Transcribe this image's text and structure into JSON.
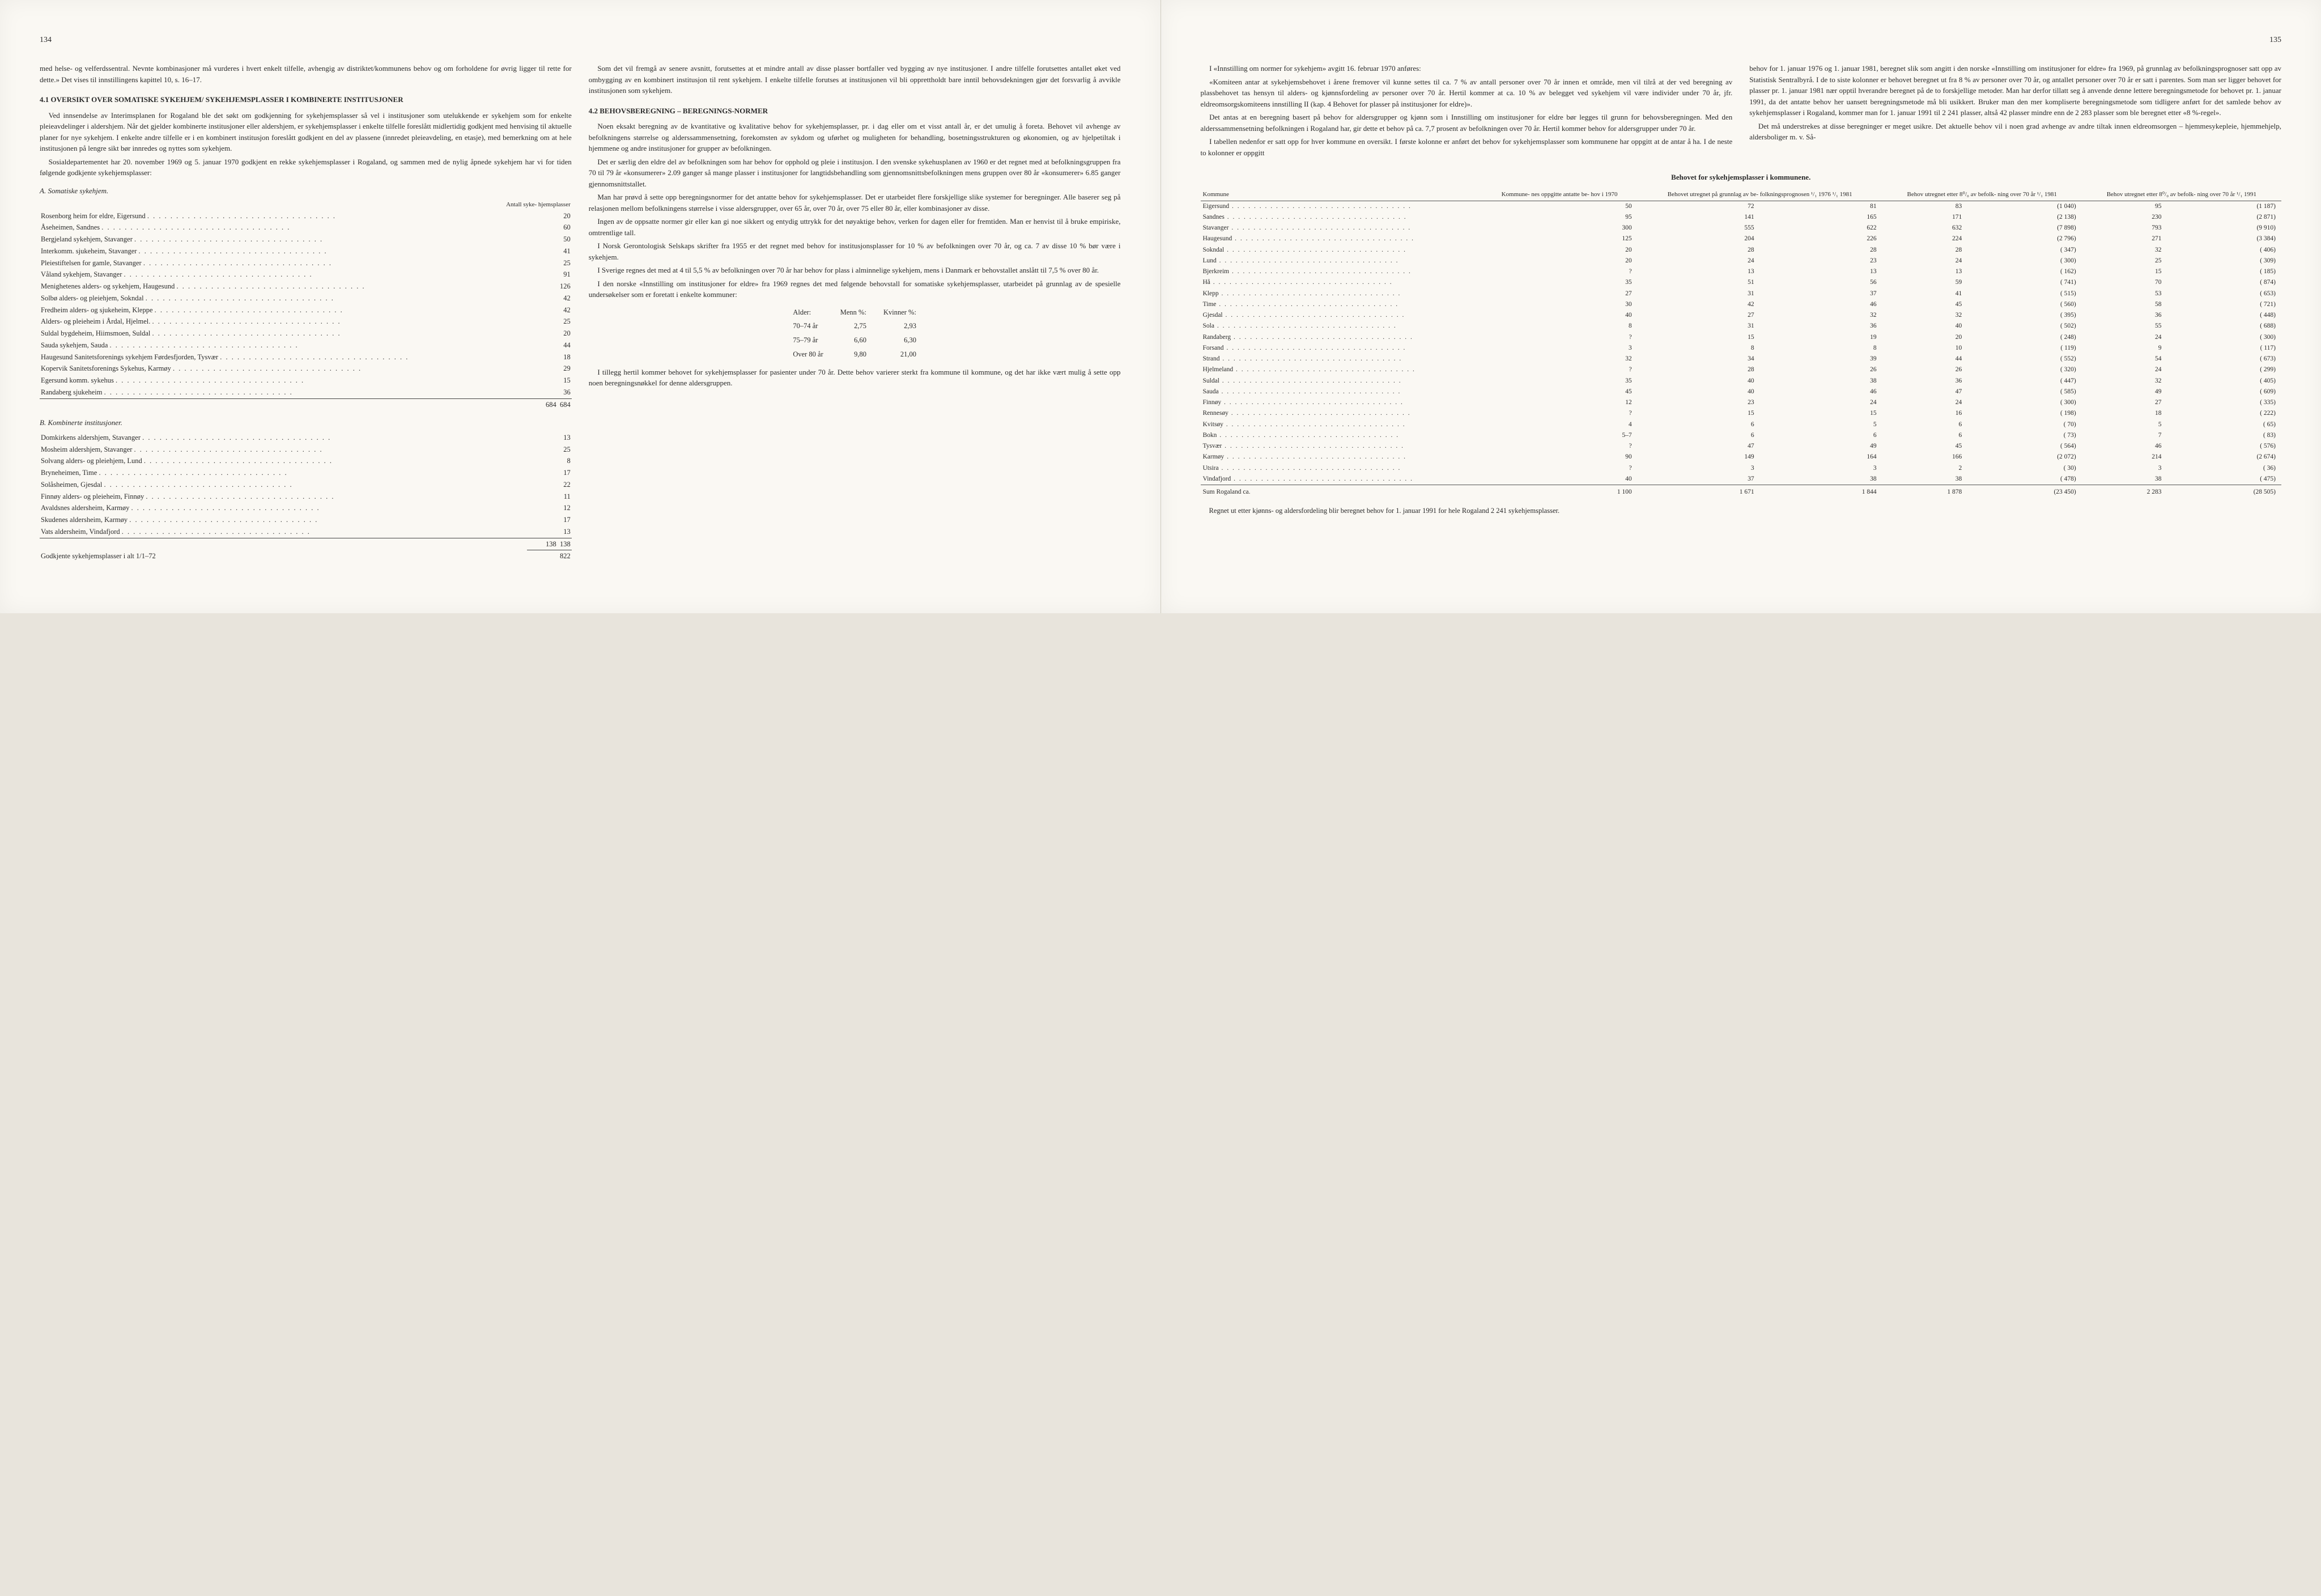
{
  "leftPage": {
    "pageNum": "134",
    "intro": "med helse- og velferdssentral. Nevnte kombinasjoner må vurderes i hvert enkelt tilfelle, avhengig av distriktet/kommunens behov og om forholdene for øvrig ligger til rette for dette.» Det vises til innstillingens kapittel 10, s. 16–17.",
    "h41": "4.1 OVERSIKT OVER SOMATISKE SYKEHJEM/ SYKEHJEMSPLASSER I KOMBINERTE INSTITUSJONER",
    "p41a": "Ved innsendelse av Interimsplanen for Rogaland ble det søkt om godkjenning for sykehjemsplasser så vel i institusjoner som utelukkende er sykehjem som for enkelte pleieavdelinger i aldershjem. Når det gjelder kombinerte institusjoner eller aldershjem, er sykehjemsplasser i enkelte tilfelle foreslått midlertidig godkjent med henvising til aktuelle planer for nye sykehjem. I enkelte andre tilfelle er i en kombinert institusjon foreslått godkjent en del av plassene (innredet pleieavdeling, en etasje), med bemerkning om at hele institusjonen på lengre sikt bør innredes og nyttes som sykehjem.",
    "p41b": "Sosialdepartementet har 20. november 1969 og 5. januar 1970 godkjent en rekke sykehjemsplasser i Rogaland, og sammen med de nylig åpnede sykehjem har vi for tiden følgende godkjente sykehjemsplasser:",
    "listAHead": "A. Somatiske sykehjem.",
    "listAColHead": "Antall syke-\nhjemsplasser",
    "listA": [
      [
        "Rosenborg heim for eldre, Eigersund",
        "20"
      ],
      [
        "Åseheimen, Sandnes",
        "60"
      ],
      [
        "Bergjeland sykehjem, Stavanger",
        "50"
      ],
      [
        "Interkomm. sjukeheim, Stavanger",
        "41"
      ],
      [
        "Pleiestiftelsen for gamle, Stavanger",
        "25"
      ],
      [
        "Våland sykehjem, Stavanger",
        "91"
      ],
      [
        "Menighetenes alders- og sykehjem, Haugesund",
        "126"
      ],
      [
        "Solbø alders- og pleiehjem, Sokndal",
        "42"
      ],
      [
        "Fredheim alders- og sjukeheim, Kleppe",
        "42"
      ],
      [
        "Alders- og pleieheim i Årdal, Hjelmel.",
        "25"
      ],
      [
        "Suldal bygdeheim, Hiimsmoen, Suldal",
        "20"
      ],
      [
        "Sauda sykehjem, Sauda",
        "44"
      ],
      [
        "Haugesund Sanitetsforenings sykehjem Førdesfjorden, Tysvær",
        "18"
      ],
      [
        "Kopervik Sanitetsforenings Sykehus, Karmøy",
        "29"
      ],
      [
        "Egersund komm. sykehus",
        "15"
      ],
      [
        "Randaberg sjukeheim",
        "36"
      ]
    ],
    "listATotal": [
      "684",
      "684"
    ],
    "listBHead": "B. Kombinerte institusjoner.",
    "listB": [
      [
        "Domkirkens aldershjem, Stavanger",
        "13"
      ],
      [
        "Mosheim aldershjem, Stavanger",
        "25"
      ],
      [
        "Solvang alders- og pleiehjem, Lund",
        "8"
      ],
      [
        "Bryneheimen, Time",
        "17"
      ],
      [
        "Solåsheimen, Gjesdal",
        "22"
      ],
      [
        "Finnøy alders- og pleieheim, Finnøy",
        "11"
      ],
      [
        "Avaldsnes aldersheim, Karmøy",
        "12"
      ],
      [
        "Skudenes aldersheim, Karmøy",
        "17"
      ],
      [
        "Vats aldersheim, Vindafjord",
        "13"
      ]
    ],
    "listBTotal": [
      "138",
      "138"
    ],
    "grandTotal": [
      "Godkjente sykehjemsplasser i alt 1/1–72",
      "822"
    ],
    "col2p1": "Som det vil fremgå av senere avsnitt, forutsettes at et mindre antall av disse plasser bortfaller ved bygging av nye institusjoner. I andre tilfelle forutsettes antallet øket ved ombygging av en kombinert institusjon til rent sykehjem. I enkelte tilfelle forutses at institusjonen vil bli opprettholdt bare inntil behovsdekningen gjør det forsvarlig å avvikle institusjonen som sykehjem.",
    "h42": "4.2 BEHOVSBEREGNING – BEREGNINGS-NORMER",
    "p42a": "Noen eksakt beregning av de kvantitative og kvalitative behov for sykehjemsplasser, pr. i dag eller om et visst antall år, er det umulig å foreta. Behovet vil avhenge av befolkningens størrelse og alderssammensetning, forekomsten av sykdom og uførhet og muligheten for behandling, bosetningsstrukturen og økonomien, og av hjelpetiltak i hjemmene og andre institusjoner for grupper av befolkningen.",
    "p42b": "Det er særlig den eldre del av befolkningen som har behov for opphold og pleie i institusjon. I den svenske sykehusplanen av 1960 er det regnet med at befolkningsgruppen fra 70 til 79 år «konsumerer» 2.09 ganger så mange plasser i institusjoner for langtidsbehandling som gjennomsnittsbefolkningen mens gruppen over 80 år «konsumerer» 6.85 ganger gjennomsnittstallet.",
    "p42c": "Man har prøvd å sette opp beregningsnormer for det antatte behov for sykehjemsplasser. Det er utarbeidet flere forskjellige slike systemer for beregninger. Alle baserer seg på relasjonen mellom befolkningens størrelse i visse aldersgrupper, over 65 år, over 70 år, over 75 eller 80 år, eller kombinasjoner av disse.",
    "p42d": "Ingen av de oppsatte normer gir eller kan gi noe sikkert og entydig uttrykk for det nøyaktige behov, verken for dagen eller for fremtiden. Man er henvist til å bruke empiriske, omtrentlige tall.",
    "p42e": "I Norsk Gerontologisk Selskaps skrifter fra 1955 er det regnet med behov for institusjonsplasser for 10 % av befolkningen over 70 år, og ca. 7 av disse 10 % bør være i sykehjem.",
    "p42f": "I Sverige regnes det med at 4 til 5,5 % av befolkningen over 70 år har behov for plass i alminnelige sykehjem, mens i Danmark er behovstallet anslått til 7,5 % over 80 år.",
    "p42g": "I den norske «Innstilling om institusjoner for eldre» fra 1969 regnes det med følgende behovstall for somatiske sykehjemsplasser, utarbeidet på grunnlag av de spesielle undersøkelser som er foretatt i enkelte kommuner:",
    "ageTable": {
      "headers": [
        "Alder:",
        "Menn %:",
        "Kvinner %:"
      ],
      "rows": [
        [
          "70–74 år",
          "2,75",
          "2,93"
        ],
        [
          "75–79 år",
          "6,60",
          "6,30"
        ],
        [
          "Over 80 år",
          "9,80",
          "21,00"
        ]
      ]
    },
    "p42h": "I tillegg hertil kommer behovet for sykehjemsplasser for pasienter under 70 år. Dette behov varierer sterkt fra kommune til kommune, og det har ikke vært mulig å sette opp noen beregningsnøkkel for denne aldersgruppen."
  },
  "rightPage": {
    "pageNum": "135",
    "p1": "I «Innstilling om normer for sykehjem» avgitt 16. februar 1970 anføres:",
    "p2": "«Komiteen antar at sykehjemsbehovet i årene fremover vil kunne settes til ca. 7 % av antall personer over 70 år innen et område, men vil tilrå at der ved beregning av plassbehovet tas hensyn til alders- og kjønnsfordeling av personer over 70 år. Hertil kommer at ca. 10 % av belegget ved sykehjem vil være individer under 70 år, jfr. eldreomsorgskomiteens innstilling II (kap. 4 Behovet for plasser på institusjoner for eldre)».",
    "p3": "Det antas at en beregning basert på behov for aldersgrupper og kjønn som i Innstilling om institusjoner for eldre bør legges til grunn for behovsberegningen. Med den alderssammensetning befolkningen i Rogaland har, gir dette et behov på ca. 7,7 prosent av befolkningen over 70 år. Hertil kommer behov for aldersgrupper under 70 år.",
    "p4": "I tabellen nedenfor er satt opp for hver kommune en oversikt. I første kolonne er anført det behov for sykehjemsplasser som kommunene har oppgitt at de antar å ha. I de neste to kolonner er oppgitt",
    "p5": "behov for 1. januar 1976 og 1. januar 1981, beregnet slik som angitt i den norske «Innstilling om institusjoner for eldre» fra 1969, på grunnlag av befolkningsprognoser satt opp av Statistisk Sentralbyrå. I de to siste kolonner er behovet beregnet ut fra 8 % av personer over 70 år, og antallet personer over 70 år er satt i parentes. Som man ser ligger behovet for plasser pr. 1. januar 1981 nær opptil hverandre beregnet på de to forskjellige metoder. Man har derfor tillatt seg å anvende denne lettere beregningsmetode for behovet pr. 1. januar 1991, da det antatte behov her uansett beregningsmetode må bli usikkert. Bruker man den mer kompliserte beregningsmetode som tidligere anført for det samlede behov av sykehjemsplasser i Rogaland, kommer man for 1. januar 1991 til 2 241 plasser, altså 42 plasser mindre enn de 2 283 plasser som ble beregnet etter «8 %-regel».",
    "p6": "Det må understrekes at disse beregninger er meget usikre. Det aktuelle behov vil i noen grad avhenge av andre tiltak innen eldreomsorgen – hjemmesykepleie, hjemmehjelp, aldersboliger m. v. Så-",
    "tableTitle": "Behovet for sykehjemsplasser i kommunene.",
    "bigHeaders": [
      "Kommune",
      "Kommune-\nnes oppgitte\nantatte be-\nhov i 1970",
      "Behovet utregnet\npå grunnlag av be-\nfolkningsprognosen\n¹/₁ 1976   ¹/₁ 1981",
      "Behov utregnet\netter 8⁰/₀ av befolk-\nning over 70 år\n¹/₁ 1981",
      "Behov utregnet\netter 8⁰/₀ av befolk-\nning over 70 år\n¹/₁ 1991"
    ],
    "bigRows": [
      [
        "Eigersund",
        "50",
        "72",
        "81",
        "83",
        "(1 040)",
        "95",
        "(1 187)"
      ],
      [
        "Sandnes",
        "95",
        "141",
        "165",
        "171",
        "(2 138)",
        "230",
        "(2 871)"
      ],
      [
        "Stavanger",
        "300",
        "555",
        "622",
        "632",
        "(7 898)",
        "793",
        "(9 910)"
      ],
      [
        "Haugesund",
        "125",
        "204",
        "226",
        "224",
        "(2 796)",
        "271",
        "(3 384)"
      ],
      [
        "Sokndal",
        "20",
        "28",
        "28",
        "28",
        "( 347)",
        "32",
        "( 406)"
      ],
      [
        "Lund",
        "20",
        "24",
        "23",
        "24",
        "( 300)",
        "25",
        "( 309)"
      ],
      [
        "Bjerkreim",
        "?",
        "13",
        "13",
        "13",
        "( 162)",
        "15",
        "( 185)"
      ],
      [
        "Hå",
        "35",
        "51",
        "56",
        "59",
        "( 741)",
        "70",
        "( 874)"
      ],
      [
        "Klepp",
        "27",
        "31",
        "37",
        "41",
        "( 515)",
        "53",
        "( 653)"
      ],
      [
        "Time",
        "30",
        "42",
        "46",
        "45",
        "( 560)",
        "58",
        "( 721)"
      ],
      [
        "Gjesdal",
        "40",
        "27",
        "32",
        "32",
        "( 395)",
        "36",
        "( 448)"
      ],
      [
        "Sola",
        "8",
        "31",
        "36",
        "40",
        "( 502)",
        "55",
        "( 688)"
      ],
      [
        "Randaberg",
        "?",
        "15",
        "19",
        "20",
        "( 248)",
        "24",
        "( 300)"
      ],
      [
        "Forsand",
        "3",
        "8",
        "8",
        "10",
        "( 119)",
        "9",
        "( 117)"
      ],
      [
        "Strand",
        "32",
        "34",
        "39",
        "44",
        "( 552)",
        "54",
        "( 673)"
      ],
      [
        "Hjelmeland",
        "?",
        "28",
        "26",
        "26",
        "( 320)",
        "24",
        "( 299)"
      ],
      [
        "Suldal",
        "35",
        "40",
        "38",
        "36",
        "( 447)",
        "32",
        "( 405)"
      ],
      [
        "Sauda",
        "45",
        "40",
        "46",
        "47",
        "( 585)",
        "49",
        "( 609)"
      ],
      [
        "Finnøy",
        "12",
        "23",
        "24",
        "24",
        "( 300)",
        "27",
        "( 335)"
      ],
      [
        "Rennesøy",
        "?",
        "15",
        "15",
        "16",
        "( 198)",
        "18",
        "( 222)"
      ],
      [
        "Kvitsøy",
        "4",
        "6",
        "5",
        "6",
        "( 70)",
        "5",
        "( 65)"
      ],
      [
        "Bokn",
        "5–7",
        "6",
        "6",
        "6",
        "( 73)",
        "7",
        "( 83)"
      ],
      [
        "Tysvær",
        "?",
        "47",
        "49",
        "45",
        "( 564)",
        "46",
        "( 576)"
      ],
      [
        "Karmøy",
        "90",
        "149",
        "164",
        "166",
        "(2 072)",
        "214",
        "(2 674)"
      ],
      [
        "Utsira",
        "?",
        "3",
        "3",
        "2",
        "( 30)",
        "3",
        "( 36)"
      ],
      [
        "Vindafjord",
        "40",
        "37",
        "38",
        "38",
        "( 478)",
        "38",
        "( 475)"
      ]
    ],
    "bigTotal": [
      "Sum Rogaland ca.",
      "1 100",
      "1 671",
      "1 844",
      "1 878",
      "(23 450)",
      "2 283",
      "(28 505)"
    ],
    "footnote": "Regnet ut etter kjønns- og aldersfordeling blir beregnet behov for 1. januar 1991 for hele Rogaland 2 241 sykehjemsplasser."
  }
}
